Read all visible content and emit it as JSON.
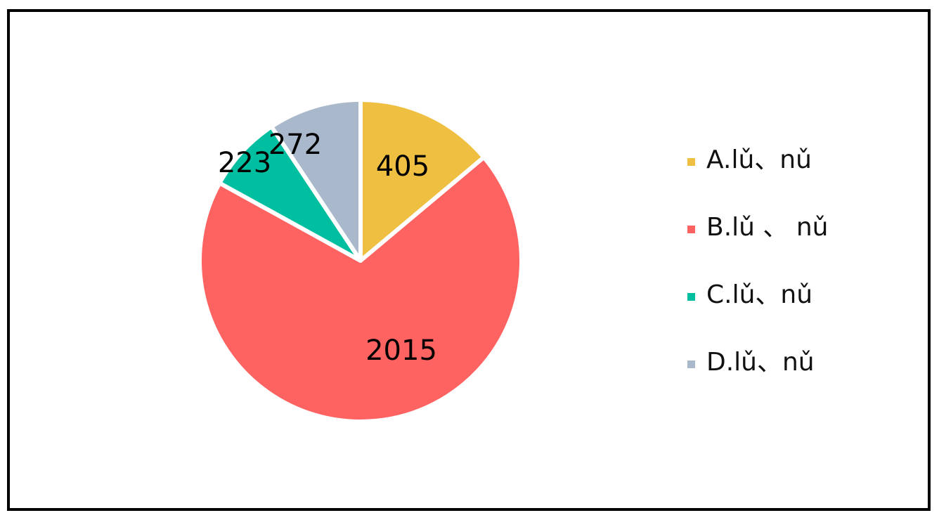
{
  "chart_data": {
    "type": "pie",
    "categories": [
      "A.lǔ、nǔ",
      "B.lǔ 、 nǔ",
      "C.lǔ、nǔ",
      "D.lǔ、nǔ"
    ],
    "values": [
      405,
      2015,
      223,
      272
    ],
    "data_labels": [
      "405",
      "2015",
      "223",
      "272"
    ],
    "colors": [
      "#EFBF42",
      "#FF6361",
      "#00BFA0",
      "#AAB8CB"
    ],
    "start_angle": "12 o'clock",
    "direction": "clockwise",
    "legend": "right"
  }
}
